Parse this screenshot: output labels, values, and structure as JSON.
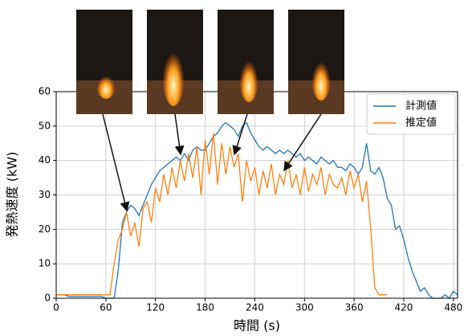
{
  "chart_data": {
    "type": "line",
    "x_label": "時間 (s)",
    "y_label": "発熱速度 (kW)",
    "x": [
      0,
      5,
      10,
      15,
      20,
      25,
      30,
      35,
      40,
      45,
      50,
      55,
      60,
      65,
      70,
      75,
      80,
      85,
      90,
      95,
      100,
      105,
      110,
      115,
      120,
      125,
      130,
      135,
      140,
      145,
      150,
      155,
      160,
      165,
      170,
      175,
      180,
      185,
      190,
      195,
      200,
      205,
      210,
      215,
      220,
      225,
      230,
      235,
      240,
      245,
      250,
      255,
      260,
      265,
      270,
      275,
      280,
      285,
      290,
      295,
      300,
      305,
      310,
      315,
      320,
      325,
      330,
      335,
      340,
      345,
      350,
      355,
      360,
      365,
      370,
      375,
      380,
      385,
      390,
      395,
      400,
      405,
      410,
      415,
      420,
      425,
      430,
      435,
      440,
      445,
      450,
      455,
      460,
      465,
      470,
      475,
      480,
      485
    ],
    "series": [
      {
        "name": "計測値",
        "color": "#1f77b4",
        "values": [
          1,
          1,
          1,
          0.5,
          0.5,
          0.5,
          0.5,
          0.5,
          0.5,
          0.5,
          0.5,
          0.5,
          0,
          0,
          0,
          8,
          22,
          25,
          27,
          26,
          24,
          27,
          30,
          33,
          35,
          37,
          38,
          39,
          40,
          41,
          40,
          42,
          40,
          43,
          44,
          43,
          43,
          45,
          47,
          48,
          50,
          51,
          50,
          49,
          47,
          50,
          51,
          48,
          46,
          44,
          43,
          44,
          43,
          42,
          43,
          42,
          43,
          42,
          41,
          42,
          40,
          41,
          40,
          39,
          41,
          40,
          39,
          40,
          38,
          38,
          37,
          39,
          38,
          36,
          38,
          45,
          37,
          36,
          38,
          35,
          29,
          27,
          20,
          21,
          17,
          12,
          8,
          5,
          2,
          3,
          1,
          0,
          0,
          0,
          1,
          0,
          2,
          1
        ]
      },
      {
        "name": "推定値",
        "color": "#ff7f0e",
        "values": [
          1,
          1,
          1,
          1,
          1,
          1,
          1,
          1,
          1,
          1,
          1,
          1,
          1,
          1,
          10,
          17,
          20,
          25,
          18,
          22,
          15,
          26,
          28,
          22,
          32,
          28,
          36,
          30,
          38,
          32,
          40,
          34,
          42,
          35,
          44,
          30,
          46,
          36,
          48,
          33,
          45,
          36,
          44,
          38,
          42,
          28,
          40,
          34,
          38,
          30,
          37,
          32,
          39,
          30,
          36,
          33,
          40,
          32,
          36,
          30,
          38,
          31,
          36,
          33,
          38,
          30,
          36,
          33,
          32,
          35,
          30,
          37,
          32,
          36,
          28,
          34,
          20,
          3,
          1,
          1,
          1,
          null,
          null,
          null,
          null,
          null,
          null,
          null,
          null,
          null,
          null,
          null,
          null,
          null,
          null,
          null,
          null,
          null
        ]
      }
    ],
    "xlim": [
      0,
      485
    ],
    "ylim": [
      0,
      60
    ],
    "xticks": [
      0,
      60,
      120,
      180,
      240,
      300,
      360,
      420,
      480
    ],
    "yticks": [
      0,
      10,
      20,
      30,
      40,
      50,
      60
    ],
    "grid": true,
    "legend": "upper right"
  }
}
